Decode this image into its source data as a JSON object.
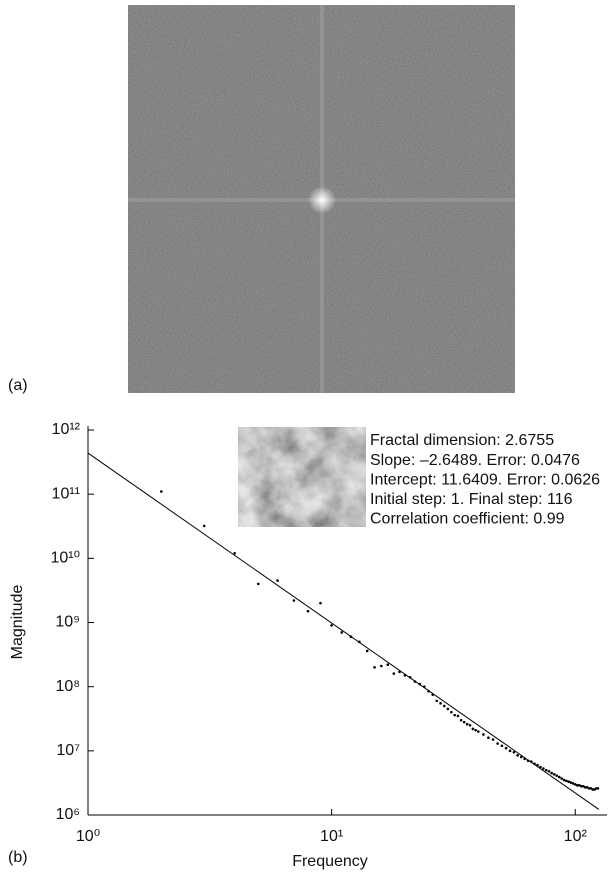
{
  "panels": {
    "a": "(a)"
  },
  "chart_data": {
    "type": "scatter",
    "panel_label": "(b)",
    "xlabel": "Frequency",
    "ylabel": "Magnitude",
    "xscale": "log",
    "yscale": "log",
    "xlim": [
      1,
      135
    ],
    "ylim": [
      1000000.0,
      1000000000000.0
    ],
    "xticks": [
      {
        "value": 1,
        "label": "10⁰"
      },
      {
        "value": 10,
        "label": "10¹"
      },
      {
        "value": 100,
        "label": "10²"
      }
    ],
    "yticks": [
      {
        "value": 1000000.0,
        "label": "10⁶"
      },
      {
        "value": 10000000.0,
        "label": "10⁷"
      },
      {
        "value": 100000000.0,
        "label": "10⁸"
      },
      {
        "value": 1000000000.0,
        "label": "10⁹"
      },
      {
        "value": 10000000000.0,
        "label": "10¹⁰"
      },
      {
        "value": 100000000000.0,
        "label": "10¹¹"
      },
      {
        "value": 1000000000000.0,
        "label": "10¹²"
      }
    ],
    "color": "#000000",
    "x": [
      2,
      3,
      4,
      5,
      6,
      7,
      8,
      9,
      10,
      11,
      12,
      13,
      14,
      15,
      16,
      17,
      18,
      19,
      20,
      21,
      22,
      23,
      24,
      25,
      26,
      27,
      28,
      29,
      30,
      31,
      32,
      33,
      34,
      35,
      36,
      37,
      38,
      39,
      40,
      42,
      44,
      46,
      48,
      50,
      52,
      54,
      56,
      58,
      60,
      62,
      64,
      66,
      68,
      70,
      72,
      74,
      76,
      78,
      80,
      82,
      84,
      86,
      88,
      90,
      92,
      94,
      96,
      98,
      100,
      102,
      104,
      106,
      108,
      110,
      112,
      114,
      116,
      118,
      120,
      122,
      124
    ],
    "values": [
      110000000000.0,
      32000000000.0,
      12000000000.0,
      4000000000.0,
      4500000000.0,
      2200000000.0,
      1500000000.0,
      2000000000.0,
      900000000.0,
      700000000.0,
      600000000.0,
      500000000.0,
      360000000.0,
      200000000.0,
      210000000.0,
      220000000.0,
      160000000.0,
      170000000.0,
      150000000.0,
      140000000.0,
      120000000.0,
      110000000.0,
      100000000.0,
      85000000.0,
      75000000.0,
      60000000.0,
      55000000.0,
      50000000.0,
      45000000.0,
      40000000.0,
      36000000.0,
      35000000.0,
      30000000.0,
      28000000.0,
      26000000.0,
      25000000.0,
      22000000.0,
      21000000.0,
      20000000.0,
      18000000.0,
      16000000.0,
      15000000.0,
      13000000.0,
      12000000.0,
      11000000.0,
      10000000.0,
      9500000.0,
      8500000.0,
      8000000.0,
      7500000.0,
      7000000.0,
      6800000.0,
      6300000.0,
      6000000.0,
      5600000.0,
      5300000.0,
      5000000.0,
      4800000.0,
      4500000.0,
      4300000.0,
      4100000.0,
      3900000.0,
      3700000.0,
      3500000.0,
      3400000.0,
      3300000.0,
      3200000.0,
      3100000.0,
      3000000.0,
      2900000.0,
      2900000.0,
      2800000.0,
      2800000.0,
      2700000.0,
      2700000.0,
      2600000.0,
      2600000.0,
      2500000.0,
      2500000.0,
      2600000.0,
      2600000.0
    ],
    "fit": {
      "x": [
        1,
        125
      ],
      "y": [
        437000000000.0,
        1220000.0
      ],
      "color": "#000000"
    },
    "annotations": [
      "Fractal dimension: 2.6755",
      "Slope: –2.6489. Error: 0.0476",
      "Intercept: 11.6409. Error: 0.0626",
      "Initial step: 1. Final step: 116",
      "Correlation coefficient: 0.99"
    ]
  }
}
